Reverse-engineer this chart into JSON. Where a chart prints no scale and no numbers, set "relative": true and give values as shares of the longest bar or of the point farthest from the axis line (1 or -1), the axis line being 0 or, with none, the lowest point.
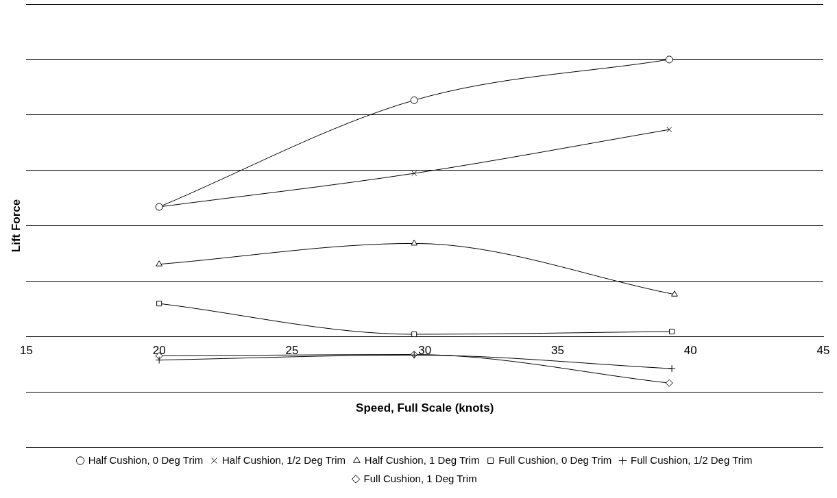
{
  "chart_data": {
    "type": "line",
    "relative": true,
    "xlabel": "Speed, Full Scale (knots)",
    "ylabel": "Lift Force",
    "xlim": [
      15,
      45
    ],
    "xticks": [
      15,
      20,
      25,
      30,
      35,
      40,
      45
    ],
    "grid": "y",
    "legend": "bottom",
    "line_style": "solid",
    "series": [
      {
        "name": "Half Cushion, 0 Deg Trim",
        "color": "#000000",
        "marker": "circle",
        "x": [
          20,
          29.6,
          39.2
        ],
        "values": [
          0.468,
          0.853,
          1
        ]
      },
      {
        "name": "Half Cushion, 1/2 Deg Trim",
        "color": "#000000",
        "marker": "cross",
        "x": [
          20,
          29.6,
          39.2
        ],
        "values": [
          0.468,
          0.589,
          0.747
        ]
      },
      {
        "name": "Half Cushion, 1 Deg Trim",
        "color": "#000000",
        "marker": "triangle",
        "x": [
          20,
          29.6,
          39.4
        ],
        "values": [
          0.261,
          0.336,
          0.152
        ]
      },
      {
        "name": "Full Cushion, 0 Deg Trim",
        "color": "#000000",
        "marker": "square",
        "x": [
          20,
          29.6,
          39.3
        ],
        "values": [
          0.119,
          0.008,
          0.018
        ]
      },
      {
        "name": "Full Cushion, 1/2 Deg Trim",
        "color": "#000000",
        "marker": "plus",
        "x": [
          20,
          29.6,
          39.3
        ],
        "values": [
          -0.085,
          -0.067,
          -0.116
        ]
      },
      {
        "name": "Full Cushion, 1 Deg Trim",
        "color": "#000000",
        "marker": "diamond",
        "x": [
          20,
          29.6,
          39.2
        ],
        "values": [
          -0.07,
          -0.065,
          -0.168
        ]
      }
    ]
  }
}
